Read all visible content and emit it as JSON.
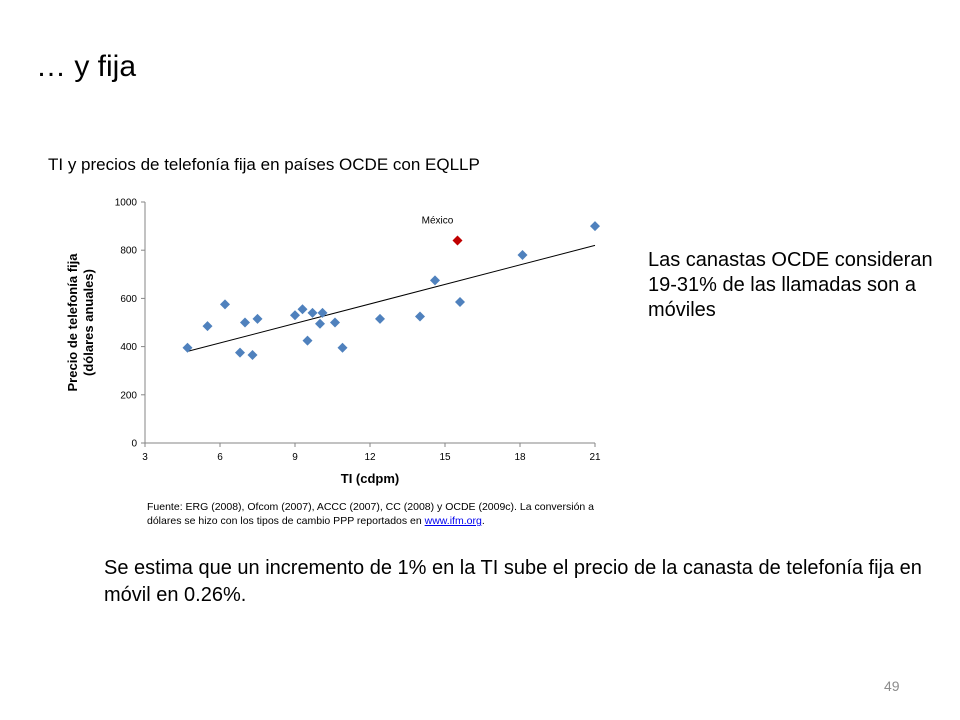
{
  "slide": {
    "title": "… y fija",
    "side_note": "Las canastas OCDE consideran 19-31% de las llamadas son a móviles",
    "source_text": "Fuente: ERG (2008), Ofcom (2007), ACCC (2007), CC (2008) y OCDE (2009c). La conversión a dólares se hizo con los tipos de cambio PPP reportados en ",
    "source_link": "www.ifm.org",
    "source_end": ".",
    "conclusion": "Se estima que un incremento de 1% en la TI sube el precio de la canasta de telefonía fija en móvil en 0.26%.",
    "page_number": "49"
  },
  "colors": {
    "point": "#4f81bd",
    "highlight": "#c00000",
    "trendline": "#000000",
    "axis": "#868686"
  },
  "chart_data": {
    "type": "scatter",
    "title": "TI y precios de telefonía fija en países OCDE con EQLLP",
    "xlabel": "TI (cdpm)",
    "ylabel_lines": [
      "Precio de telefonía fija",
      "(dólares anuales)"
    ],
    "xlim": [
      3,
      21
    ],
    "ylim": [
      0,
      1000
    ],
    "x_ticks": [
      3,
      6,
      9,
      12,
      15,
      18,
      21
    ],
    "y_ticks": [
      0,
      200,
      400,
      600,
      800,
      1000
    ],
    "grid": false,
    "points": [
      {
        "x": 4.7,
        "y": 395
      },
      {
        "x": 5.5,
        "y": 485
      },
      {
        "x": 6.2,
        "y": 575
      },
      {
        "x": 6.8,
        "y": 375
      },
      {
        "x": 7.0,
        "y": 500
      },
      {
        "x": 7.3,
        "y": 365
      },
      {
        "x": 7.5,
        "y": 515
      },
      {
        "x": 9.0,
        "y": 530
      },
      {
        "x": 9.3,
        "y": 555
      },
      {
        "x": 9.5,
        "y": 425
      },
      {
        "x": 9.7,
        "y": 540
      },
      {
        "x": 10.0,
        "y": 495
      },
      {
        "x": 10.1,
        "y": 540
      },
      {
        "x": 10.6,
        "y": 500
      },
      {
        "x": 10.9,
        "y": 395
      },
      {
        "x": 12.4,
        "y": 515
      },
      {
        "x": 14.0,
        "y": 525
      },
      {
        "x": 14.6,
        "y": 675
      },
      {
        "x": 15.6,
        "y": 585
      },
      {
        "x": 18.1,
        "y": 780
      },
      {
        "x": 21.0,
        "y": 900
      }
    ],
    "highlight": {
      "label": "México",
      "x": 15.5,
      "y": 840
    },
    "trendline": {
      "x": [
        4.7,
        21.0
      ],
      "y": [
        380,
        820
      ]
    }
  }
}
